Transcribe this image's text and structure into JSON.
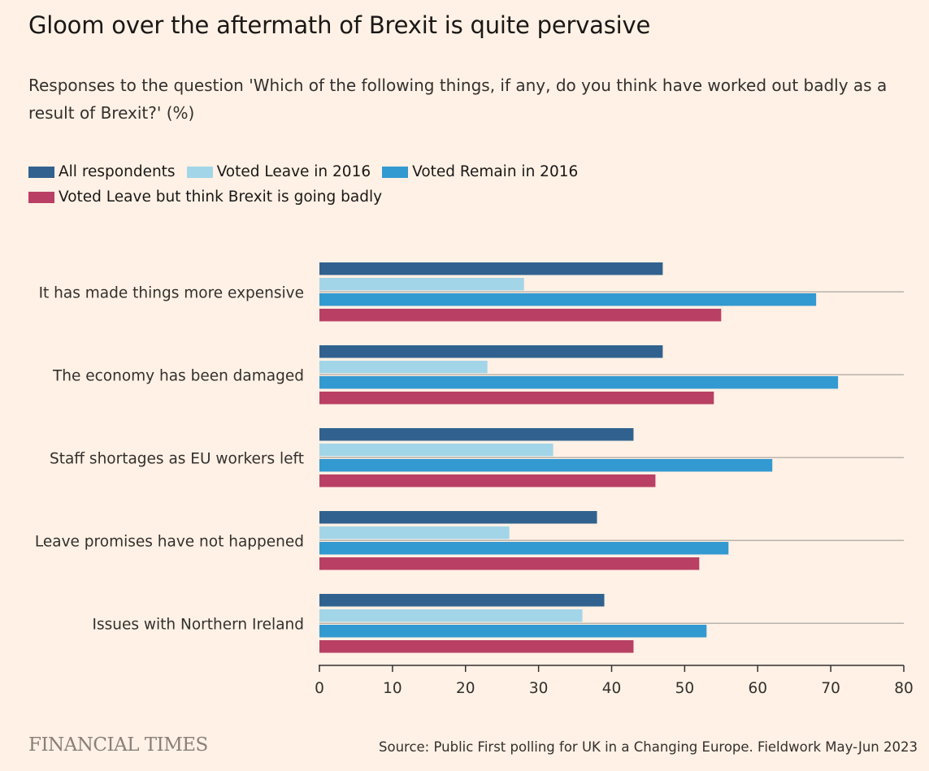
{
  "title": "Gloom over the aftermath of Brexit is quite pervasive",
  "subtitle": "Responses to the question 'Which of the following things, if any, do you think have worked out badly as a result of Brexit?' (%)",
  "footer": {
    "logo": "FINANCIAL TIMES",
    "source": "Source: Public First polling for UK in a Changing Europe. Fieldwork May-Jun 2023"
  },
  "chart_data": {
    "type": "bar",
    "orientation": "horizontal",
    "categories": [
      "It has made things more expensive",
      "The economy has been damaged",
      "Staff shortages as EU workers left",
      "Leave promises have not happened",
      "Issues with Northern Ireland"
    ],
    "series": [
      {
        "name": "All respondents",
        "color": "#31628f",
        "values": [
          47,
          47,
          43,
          38,
          39
        ]
      },
      {
        "name": "Voted Leave in 2016",
        "color": "#a3d5e8",
        "values": [
          28,
          23,
          32,
          26,
          36
        ]
      },
      {
        "name": "Voted Remain in 2016",
        "color": "#3399d1",
        "values": [
          68,
          71,
          62,
          56,
          53
        ]
      },
      {
        "name": "Voted Leave but think Brexit is going badly",
        "color": "#b94064",
        "values": [
          55,
          54,
          46,
          52,
          43
        ]
      }
    ],
    "xlim": [
      0,
      80
    ],
    "xticks": [
      0,
      10,
      20,
      30,
      40,
      50,
      60,
      70,
      80
    ],
    "legend_position": "top-left",
    "grid": true
  }
}
